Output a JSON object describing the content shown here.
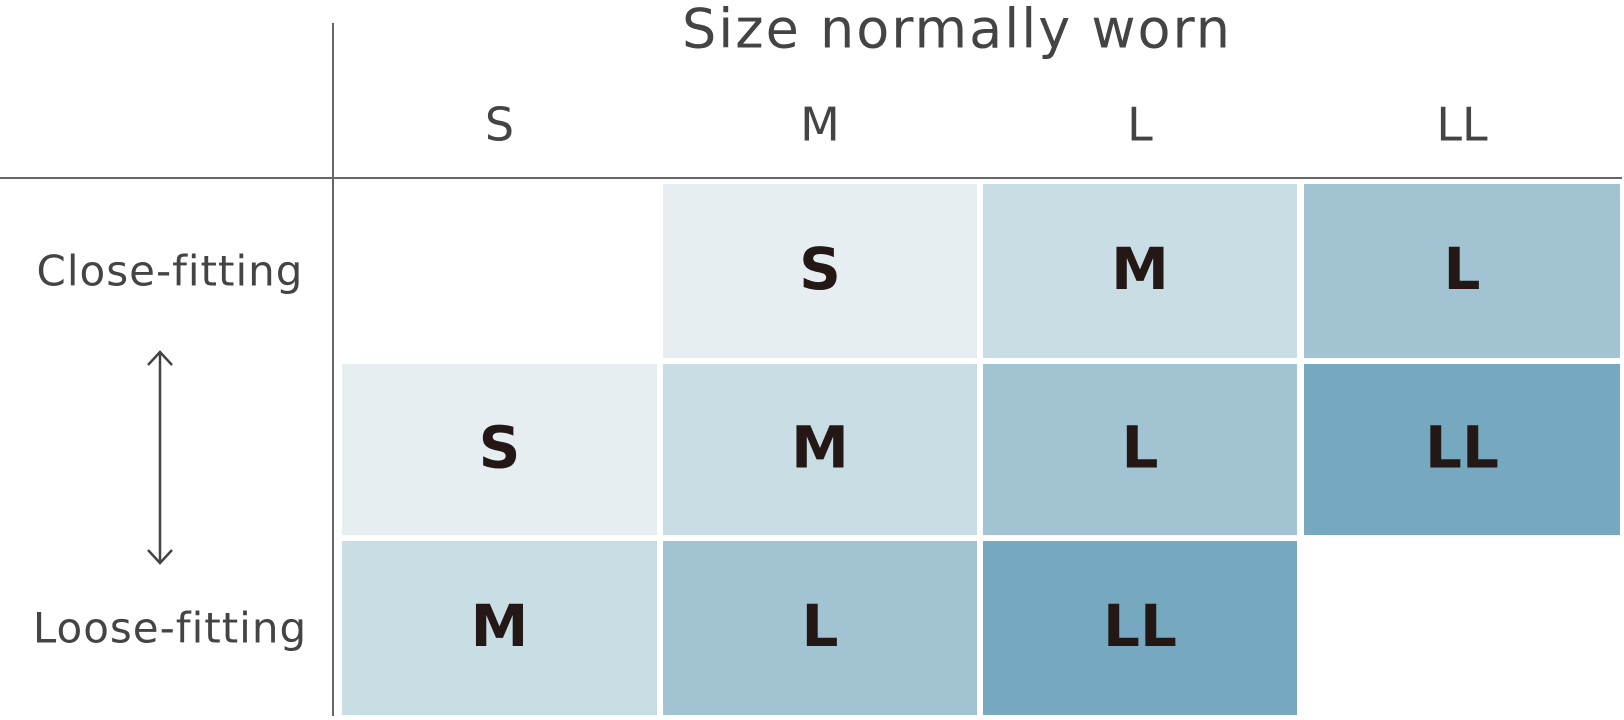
{
  "header": {
    "title": "Size normally worn"
  },
  "columns": [
    "S",
    "M",
    "L",
    "LL"
  ],
  "rows": [
    {
      "label": "Close-fitting",
      "cells": [
        null,
        "S",
        "M",
        "L"
      ]
    },
    {
      "cells": [
        "S",
        "M",
        "L",
        "LL"
      ]
    },
    {
      "label": "Loose-fitting",
      "cells": [
        "M",
        "L",
        "LL",
        null
      ]
    }
  ],
  "cell_colors": {
    "S": "#e6eef1",
    "M": "#c9dde5",
    "L": "#a1c3d2",
    "LL": "#76a9bf"
  }
}
